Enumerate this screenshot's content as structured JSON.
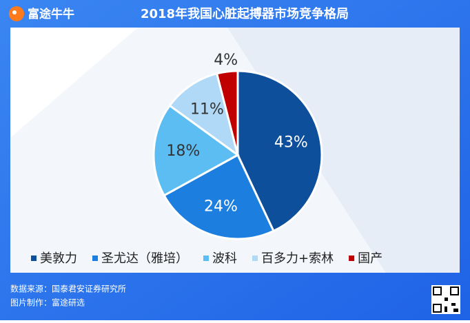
{
  "brand": "富途牛牛",
  "chart_data": {
    "type": "pie",
    "title": "2018年我国心脏起搏器市场竞争格局",
    "categories": [
      "美敦力",
      "圣尤达（雅培）",
      "波科",
      "百多力+索林",
      "国产"
    ],
    "values": [
      43,
      24,
      18,
      11,
      4
    ],
    "value_labels": [
      "43%",
      "24%",
      "18%",
      "11%",
      "4%"
    ],
    "colors": [
      "#0d4f9b",
      "#1c7fe0",
      "#5bbdf1",
      "#b0d9f7",
      "#c00000"
    ],
    "legend": "bottom"
  },
  "footer": {
    "source": "数据来源：国泰君安证券研究所",
    "credit": "图片制作：富途研选"
  }
}
